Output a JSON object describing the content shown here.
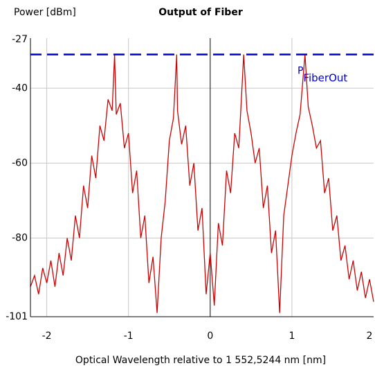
{
  "chart_data": {
    "type": "line",
    "title": "Output of Fiber",
    "y_label": "Power [dBm]",
    "x_label": "Optical Wavelength relative to 1 552,5244 nm [nm]",
    "xlim": [
      -2.2,
      2.0
    ],
    "xticks": [
      -2,
      -1,
      0,
      1,
      2
    ],
    "ylim": [
      -101,
      -27
    ],
    "yticks": [
      -101,
      -80,
      -60,
      -40,
      -27
    ],
    "grid": true,
    "reference_line": {
      "value": -31,
      "label": "P",
      "label_sub": "FiberOut",
      "color": "#0000cc"
    },
    "series": [
      {
        "color": "#cc0000",
        "x": [
          -2.2,
          -2.15,
          -2.1,
          -2.05,
          -2.0,
          -1.95,
          -1.9,
          -1.85,
          -1.8,
          -1.75,
          -1.7,
          -1.65,
          -1.6,
          -1.55,
          -1.5,
          -1.45,
          -1.4,
          -1.35,
          -1.3,
          -1.25,
          -1.2,
          -1.17,
          -1.15,
          -1.1,
          -1.05,
          -1.0,
          -0.95,
          -0.9,
          -0.85,
          -0.8,
          -0.75,
          -0.7,
          -0.65,
          -0.6,
          -0.55,
          -0.5,
          -0.45,
          -0.41,
          -0.4,
          -0.35,
          -0.3,
          -0.25,
          -0.2,
          -0.15,
          -0.1,
          -0.05,
          0.0,
          0.05,
          0.1,
          0.15,
          0.2,
          0.25,
          0.3,
          0.35,
          0.41,
          0.45,
          0.5,
          0.55,
          0.6,
          0.65,
          0.7,
          0.75,
          0.8,
          0.85,
          0.9,
          0.95,
          1.0,
          1.05,
          1.1,
          1.16,
          1.2,
          1.25,
          1.3,
          1.35,
          1.4,
          1.45,
          1.5,
          1.55,
          1.6,
          1.65,
          1.7,
          1.75,
          1.8,
          1.85,
          1.9,
          1.95,
          2.0
        ],
        "values": [
          -93,
          -90,
          -95,
          -88,
          -92,
          -86,
          -93,
          -84,
          -90,
          -80,
          -86,
          -74,
          -80,
          -66,
          -72,
          -58,
          -64,
          -50,
          -54,
          -43,
          -46,
          -31,
          -47,
          -44,
          -56,
          -52,
          -68,
          -62,
          -80,
          -74,
          -92,
          -85,
          -100,
          -80,
          -70,
          -54,
          -48,
          -31,
          -46,
          -55,
          -50,
          -66,
          -60,
          -78,
          -72,
          -95,
          -84,
          -98,
          -76,
          -82,
          -62,
          -68,
          -52,
          -56,
          -31,
          -46,
          -52,
          -60,
          -56,
          -72,
          -66,
          -84,
          -78,
          -100,
          -74,
          -66,
          -58,
          -52,
          -47,
          -31,
          -45,
          -50,
          -56,
          -54,
          -68,
          -64,
          -78,
          -74,
          -86,
          -82,
          -91,
          -86,
          -94,
          -89,
          -96,
          -91,
          -97
        ]
      }
    ]
  }
}
